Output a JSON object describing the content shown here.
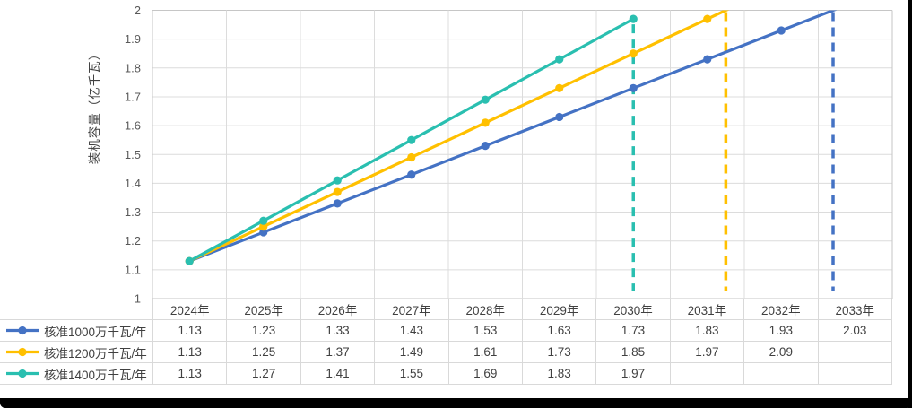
{
  "frame": {
    "background": "#FFFFFF",
    "frame_color": "#000000"
  },
  "chart_data": {
    "type": "line",
    "title": "",
    "ylabel": "装机容量（亿千瓦）",
    "xlabel": "",
    "ylim": [
      1,
      2
    ],
    "yticks": [
      "2",
      "1.9",
      "1.8",
      "1.7",
      "1.6",
      "1.5",
      "1.4",
      "1.3",
      "1.2",
      "1.1",
      "1"
    ],
    "categories": [
      "2024年",
      "2025年",
      "2026年",
      "2027年",
      "2028年",
      "2029年",
      "2030年",
      "2031年",
      "2032年",
      "2033年"
    ],
    "grid": true,
    "legend_position": "data-table-left",
    "data_table_shown": true,
    "goal": {
      "threshold": 2,
      "style": "dashed-vertical-drop-line"
    },
    "series": [
      {
        "name": "核准1000万千瓦/年",
        "color": "#4472C4",
        "values": [
          1.13,
          1.23,
          1.33,
          1.43,
          1.53,
          1.63,
          1.73,
          1.83,
          1.93,
          2.03
        ],
        "display": [
          "1.13",
          "1.23",
          "1.33",
          "1.43",
          "1.53",
          "1.63",
          "1.73",
          "1.83",
          "1.93",
          "2.03"
        ]
      },
      {
        "name": "核准1200万千瓦/年",
        "color": "#FFC000",
        "values": [
          1.13,
          1.25,
          1.37,
          1.49,
          1.61,
          1.73,
          1.85,
          1.97,
          2.09
        ],
        "display": [
          "1.13",
          "1.25",
          "1.37",
          "1.49",
          "1.61",
          "1.73",
          "1.85",
          "1.97",
          "2.09",
          ""
        ]
      },
      {
        "name": "核准1400万千瓦/年",
        "color": "#2ABFB0",
        "values": [
          1.13,
          1.27,
          1.41,
          1.55,
          1.69,
          1.83,
          1.97
        ],
        "display": [
          "1.13",
          "1.27",
          "1.41",
          "1.55",
          "1.69",
          "1.83",
          "1.97",
          "",
          "",
          ""
        ]
      }
    ],
    "colors": {
      "grid": "#DCDCDC",
      "axis": "#C6C6C6",
      "tick_text": "#595959",
      "table_text": "#404040"
    }
  }
}
